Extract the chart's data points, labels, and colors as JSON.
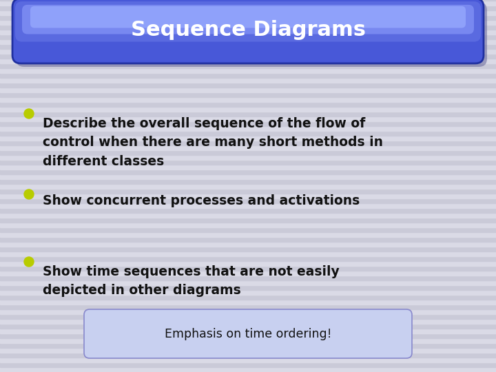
{
  "title": "Sequence Diagrams",
  "title_color": "#ffffff",
  "title_fontsize": 22,
  "background_color": "#d4d4e0",
  "stripe_color_light": "#dadae6",
  "stripe_color_dark": "#cacad8",
  "bullet_color": "#b8cc00",
  "bullet_points": [
    "Describe the overall sequence of the flow of\ncontrol when there are many short methods in\ndifferent classes",
    "Show concurrent processes and activations",
    "Show time sequences that are not easily\ndepicted in other diagrams"
  ],
  "bullet_fontsize": 13.5,
  "text_color": "#111111",
  "emphasis_text": "Emphasis on time ordering!",
  "emphasis_box_color": "#c8d0f0",
  "emphasis_text_color": "#111111",
  "emphasis_fontsize": 12.5,
  "title_box_main": "#4858d8",
  "title_box_mid": "#5a6ae0",
  "title_box_light": "#7888f0",
  "title_box_shine": "#9aacff",
  "title_box_edge": "#2030a0",
  "title_shadow": "#7070a0"
}
